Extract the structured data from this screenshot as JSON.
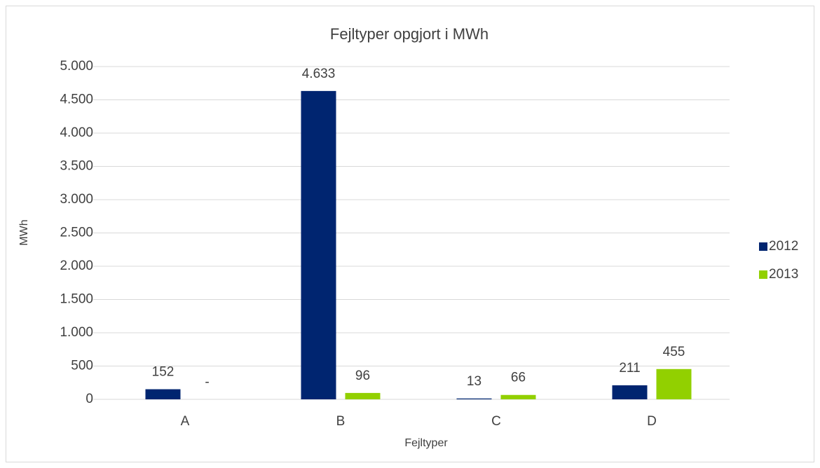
{
  "chart_data": {
    "type": "bar",
    "title": "Fejltyper opgjort i MWh",
    "x_label": "Fejltyper",
    "y_label": "MWh",
    "categories": [
      "A",
      "B",
      "C",
      "D"
    ],
    "series": [
      {
        "name": "2012",
        "color": "#002570",
        "values": [
          152,
          4633,
          13,
          211
        ],
        "value_labels": [
          "152",
          "4.633",
          "13",
          "211"
        ]
      },
      {
        "name": "2013",
        "color": "#92d000",
        "values": [
          0,
          96,
          66,
          455
        ],
        "value_labels": [
          "-",
          "96",
          "66",
          "455"
        ]
      }
    ],
    "ylim": [
      0,
      5000
    ],
    "yticks": [
      0,
      500,
      {
        "value": 1000,
        "label": "1.000"
      },
      {
        "value": 1500,
        "label": "1.500"
      },
      {
        "value": 2000,
        "label": "2.000"
      },
      {
        "value": 2500,
        "label": "2.500"
      },
      {
        "value": 3000,
        "label": "3.000"
      },
      {
        "value": 3500,
        "label": "3.500"
      },
      {
        "value": 4000,
        "label": "4.000"
      },
      {
        "value": 4500,
        "label": "4.500"
      },
      {
        "value": 5000,
        "label": "5.000"
      }
    ],
    "grid": true,
    "legend": "right"
  }
}
